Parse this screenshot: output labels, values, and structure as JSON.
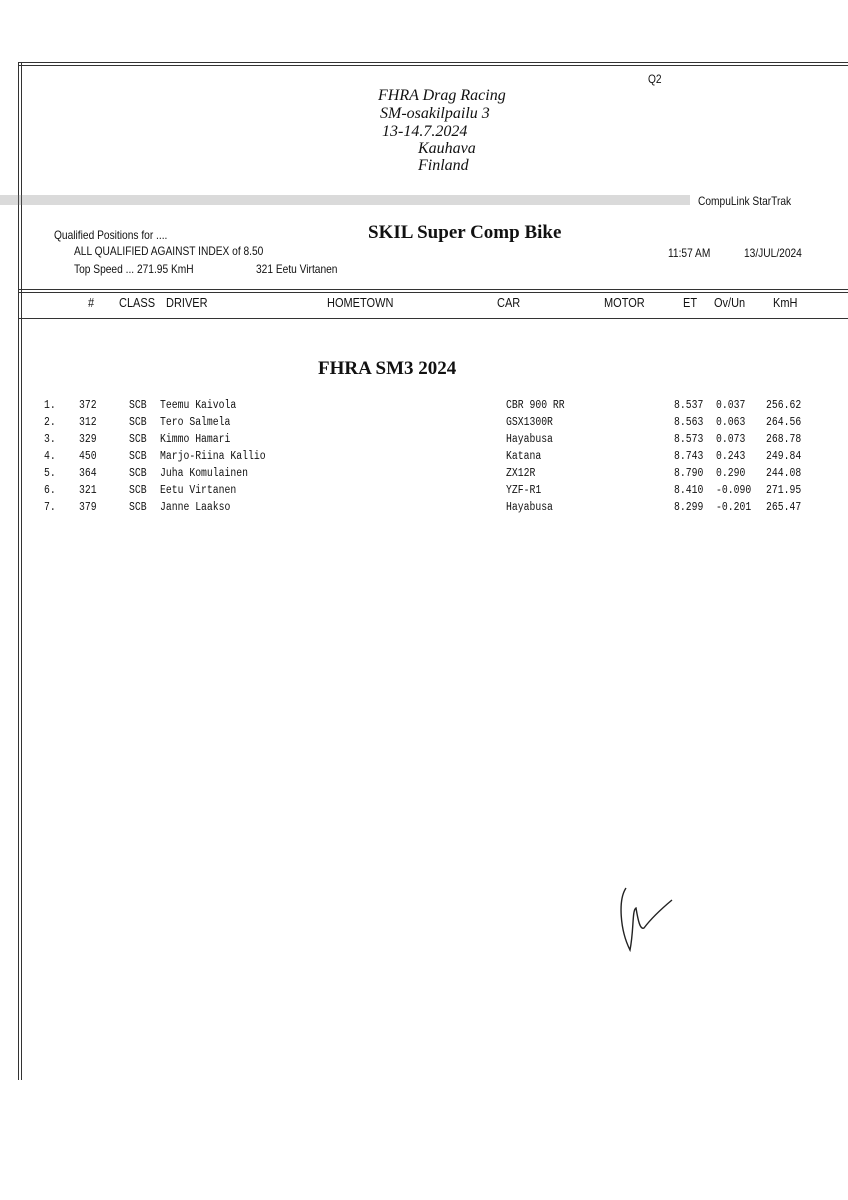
{
  "header": {
    "session": "Q2",
    "event_lines": [
      "FHRA Drag Racing",
      "SM-osakilpailu 3",
      "13-14.7.2024",
      "Kauhava",
      "Finland"
    ],
    "system": "CompuLink  StarTrak"
  },
  "summary": {
    "qualified_label": "Qualified Positions for ....",
    "class_title": "SKIL Super Comp Bike",
    "index_line": "ALL QUALIFIED AGAINST INDEX of  8.50",
    "top_speed_line": "Top Speed ...  271.95  KmH",
    "top_speed_driver": "321   Eetu Virtanen",
    "time": "11:57 AM",
    "date": "13/JUL/2024"
  },
  "columns": [
    "#",
    "CLASS",
    "DRIVER",
    "HOMETOWN",
    "CAR",
    "MOTOR",
    "ET",
    "Ov/Un",
    "KmH"
  ],
  "section_title": "FHRA SM3 2024",
  "rows": [
    {
      "pos": "1.",
      "num": "372",
      "cls": "SCB",
      "driver": "Teemu Kaivola",
      "car": "CBR 900 RR",
      "et": "8.537",
      "ovun": "0.037",
      "kmh": "256.62"
    },
    {
      "pos": "2.",
      "num": "312",
      "cls": "SCB",
      "driver": "Tero Salmela",
      "car": "GSX1300R",
      "et": "8.563",
      "ovun": "0.063",
      "kmh": "264.56"
    },
    {
      "pos": "3.",
      "num": "329",
      "cls": "SCB",
      "driver": "Kimmo Hamari",
      "car": "Hayabusa",
      "et": "8.573",
      "ovun": "0.073",
      "kmh": "268.78"
    },
    {
      "pos": "4.",
      "num": "450",
      "cls": "SCB",
      "driver": "Marjo-Riina Kallio",
      "car": "Katana",
      "et": "8.743",
      "ovun": "0.243",
      "kmh": "249.84"
    },
    {
      "pos": "5.",
      "num": "364",
      "cls": "SCB",
      "driver": "Juha Komulainen",
      "car": "ZX12R",
      "et": "8.790",
      "ovun": "0.290",
      "kmh": "244.08"
    },
    {
      "pos": "6.",
      "num": "321",
      "cls": "SCB",
      "driver": "Eetu Virtanen",
      "car": "YZF-R1",
      "et": "8.410",
      "ovun": "-0.090",
      "kmh": "271.95"
    },
    {
      "pos": "7.",
      "num": "379",
      "cls": "SCB",
      "driver": "Janne Laakso",
      "car": "Hayabusa",
      "et": "8.299",
      "ovun": "-0.201",
      "kmh": "265.47"
    }
  ]
}
